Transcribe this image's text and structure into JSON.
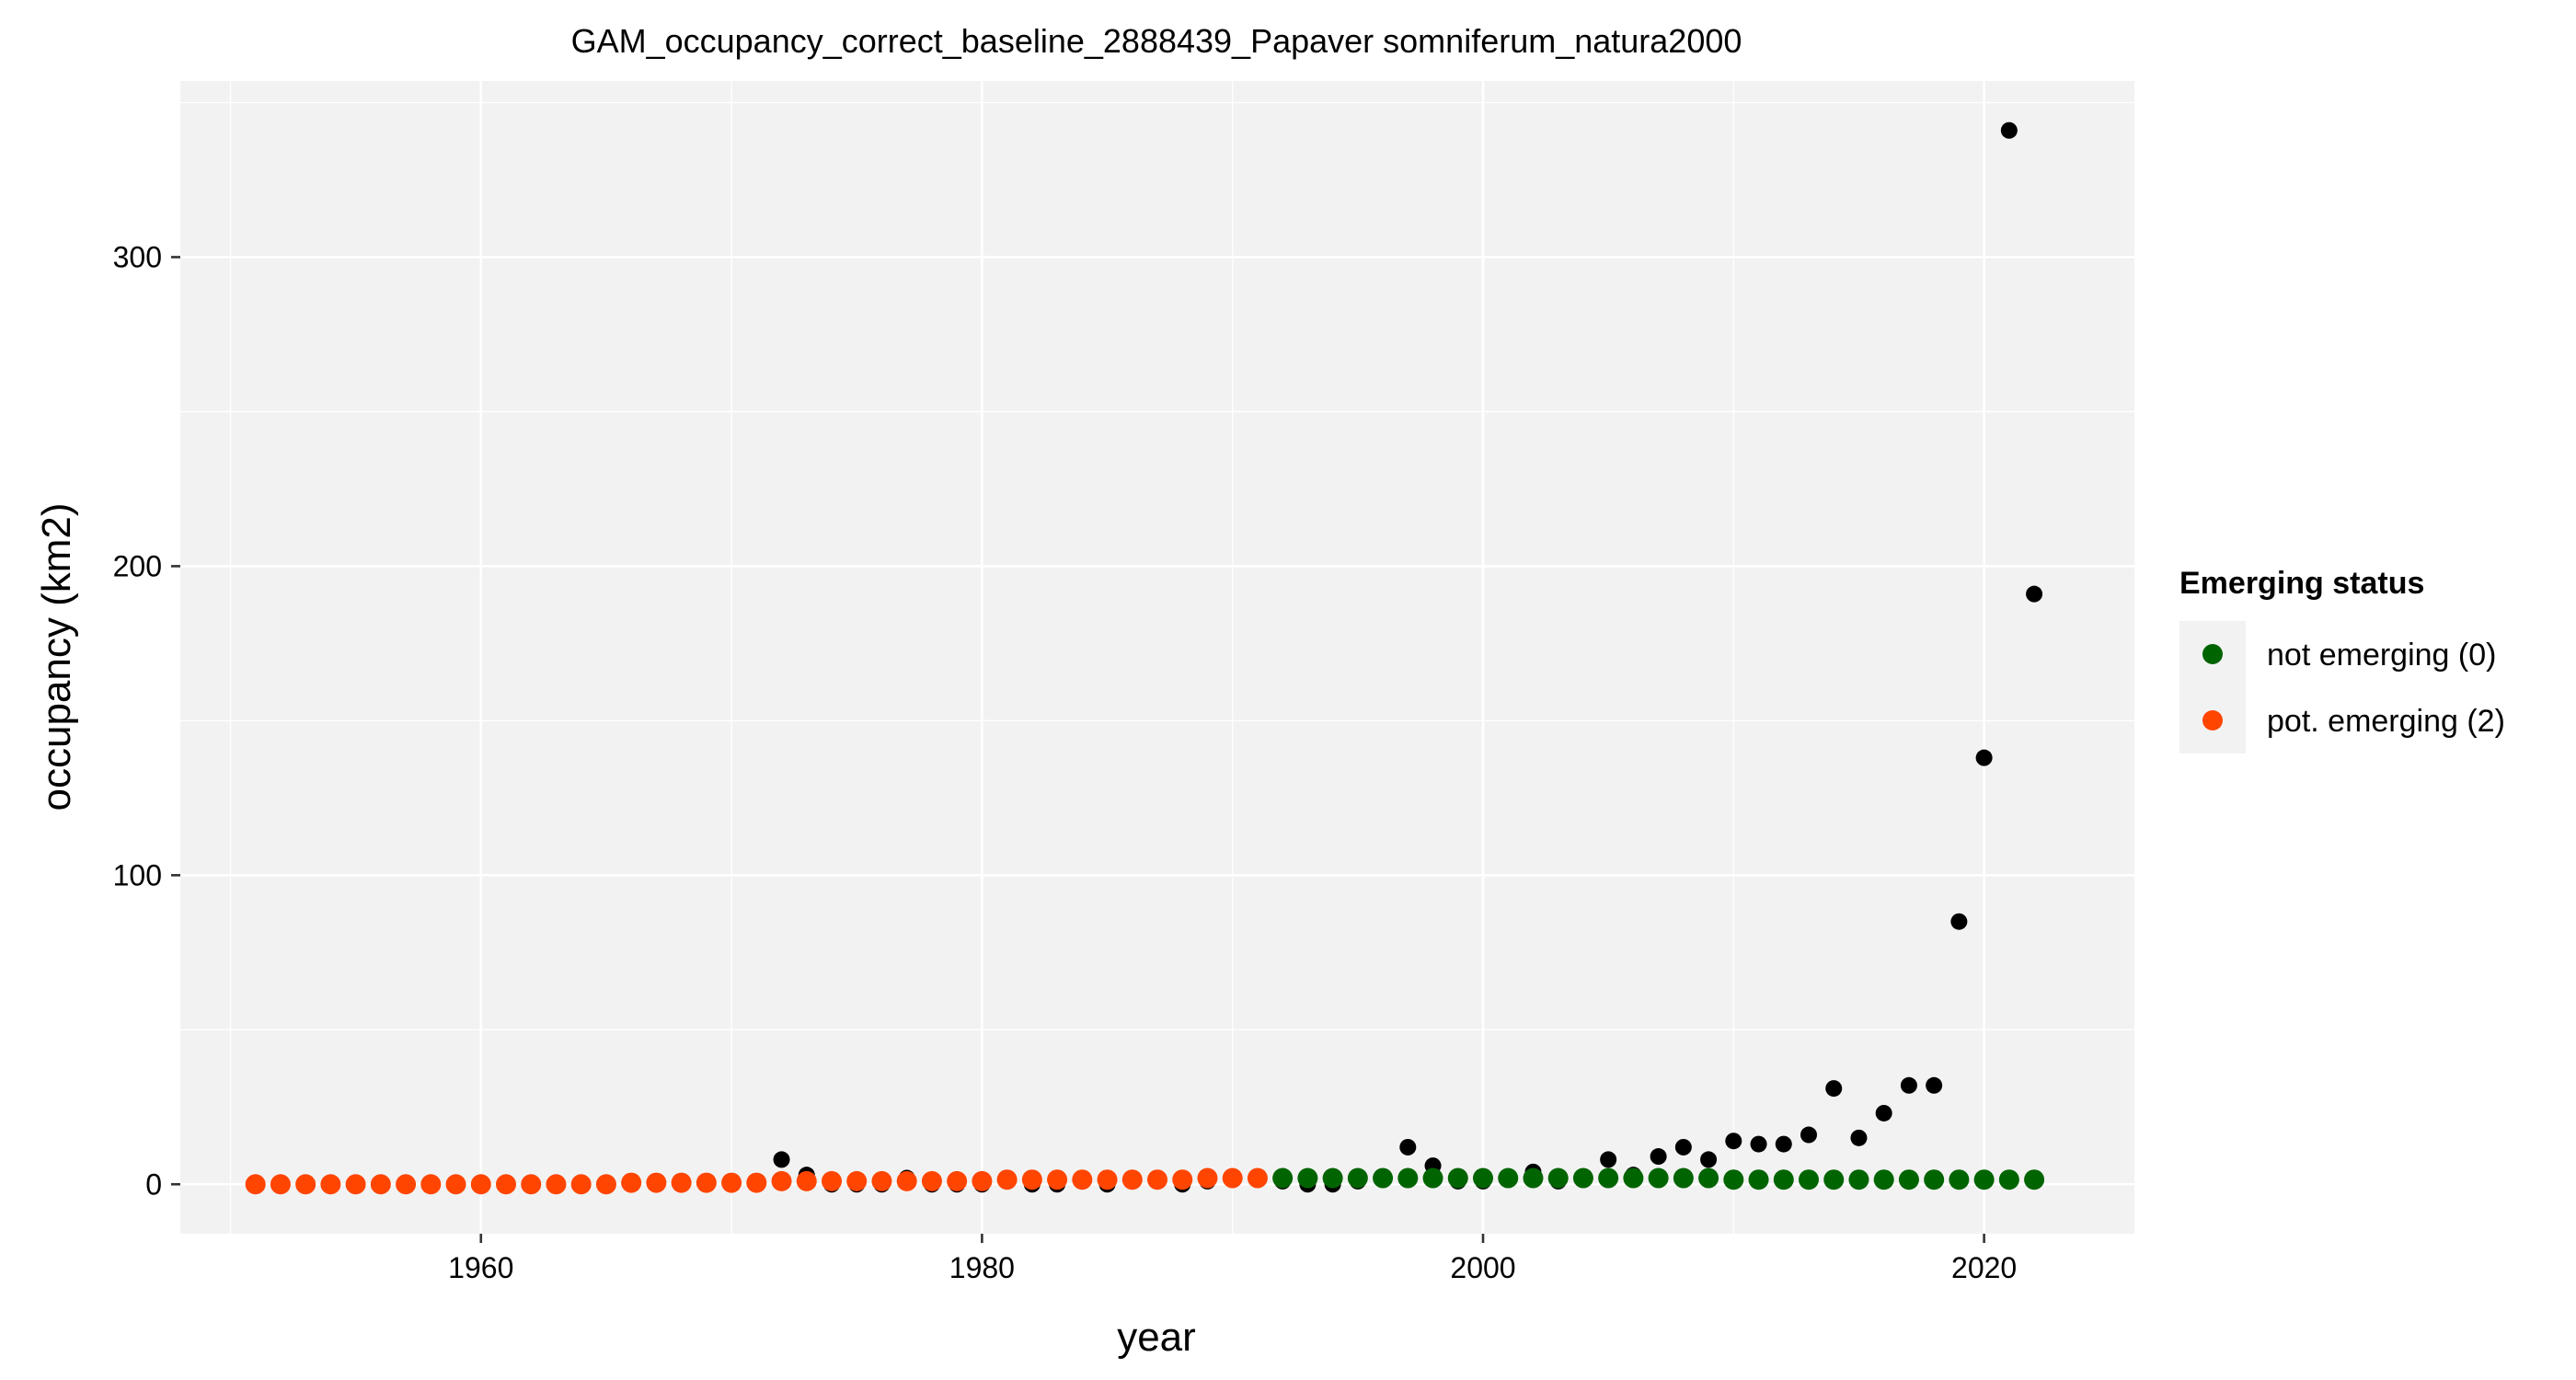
{
  "chart_data": {
    "type": "scatter",
    "title": "GAM_occupancy_correct_baseline_2888439_Papaver somniferum_natura2000",
    "xlabel": "year",
    "ylabel": "occupancy (km2)",
    "xlim": [
      1948,
      2026
    ],
    "ylim": [
      -16,
      357
    ],
    "xticks": [
      1960,
      1980,
      2000,
      2020
    ],
    "yticks": [
      0,
      100,
      200,
      300
    ],
    "grid": true,
    "legend": {
      "title": "Emerging status",
      "position": "right",
      "entries": [
        {
          "label": "not emerging (0)",
          "color": "#006400"
        },
        {
          "label": "pot. emerging (2)",
          "color": "#FF4500"
        }
      ]
    },
    "observed": {
      "color": "#000000",
      "x": [
        1952,
        1953,
        1954,
        1955,
        1956,
        1957,
        1958,
        1959,
        1960,
        1961,
        1962,
        1963,
        1964,
        1965,
        1966,
        1967,
        1968,
        1969,
        1970,
        1971,
        1972,
        1973,
        1974,
        1975,
        1976,
        1977,
        1978,
        1979,
        1980,
        1981,
        1982,
        1983,
        1984,
        1985,
        1986,
        1987,
        1988,
        1989,
        1990,
        1991,
        1992,
        1993,
        1994,
        1995,
        1996,
        1997,
        1998,
        1999,
        2000,
        2001,
        2002,
        2003,
        2004,
        2005,
        2006,
        2007,
        2008,
        2009,
        2010,
        2011,
        2012,
        2013,
        2014,
        2015,
        2016,
        2017,
        2018,
        2019,
        2020,
        2021,
        2022
      ],
      "y": [
        0,
        0,
        0,
        0,
        0,
        0,
        0,
        0,
        0,
        0,
        0,
        0,
        0,
        0,
        0,
        0,
        0,
        0,
        0,
        0,
        8,
        3,
        0,
        0,
        0,
        2,
        0,
        0,
        0,
        1,
        0,
        0,
        2,
        0,
        1,
        2,
        0,
        1,
        2,
        2,
        1,
        0,
        0,
        1,
        2,
        12,
        6,
        1,
        1,
        2,
        4,
        1,
        2,
        8,
        3,
        9,
        12,
        8,
        14,
        13,
        13,
        16,
        31,
        15,
        23,
        32,
        32,
        85,
        138,
        341,
        191
      ]
    },
    "series": [
      {
        "name": "pot. emerging (2)",
        "color": "#FF4500",
        "x": [
          1951,
          1952,
          1953,
          1954,
          1955,
          1956,
          1957,
          1958,
          1959,
          1960,
          1961,
          1962,
          1963,
          1964,
          1965,
          1966,
          1967,
          1968,
          1969,
          1970,
          1971,
          1972,
          1973,
          1974,
          1975,
          1976,
          1977,
          1978,
          1979,
          1980,
          1981,
          1982,
          1983,
          1984,
          1985,
          1986,
          1987,
          1988,
          1989,
          1990,
          1991
        ],
        "y": [
          0,
          0,
          0,
          0,
          0,
          0,
          0,
          0,
          0,
          0,
          0,
          0,
          0,
          0,
          0,
          0.5,
          0.5,
          0.5,
          0.5,
          0.5,
          0.5,
          1,
          1,
          1,
          1,
          1,
          1,
          1,
          1,
          1,
          1.5,
          1.5,
          1.5,
          1.5,
          1.5,
          1.5,
          1.5,
          1.5,
          2,
          2,
          2
        ]
      },
      {
        "name": "not emerging (0)",
        "color": "#006400",
        "x": [
          1992,
          1993,
          1994,
          1995,
          1996,
          1997,
          1998,
          1999,
          2000,
          2001,
          2002,
          2003,
          2004,
          2005,
          2006,
          2007,
          2008,
          2009,
          2010,
          2011,
          2012,
          2013,
          2014,
          2015,
          2016,
          2017,
          2018,
          2019,
          2020,
          2021,
          2022
        ],
        "y": [
          2,
          2,
          2,
          2,
          2,
          2,
          2,
          2,
          2,
          2,
          2,
          2,
          2,
          2,
          2,
          2,
          2,
          2,
          1.5,
          1.5,
          1.5,
          1.5,
          1.5,
          1.5,
          1.5,
          1.5,
          1.5,
          1.5,
          1.5,
          1.5,
          1.5
        ]
      }
    ]
  }
}
